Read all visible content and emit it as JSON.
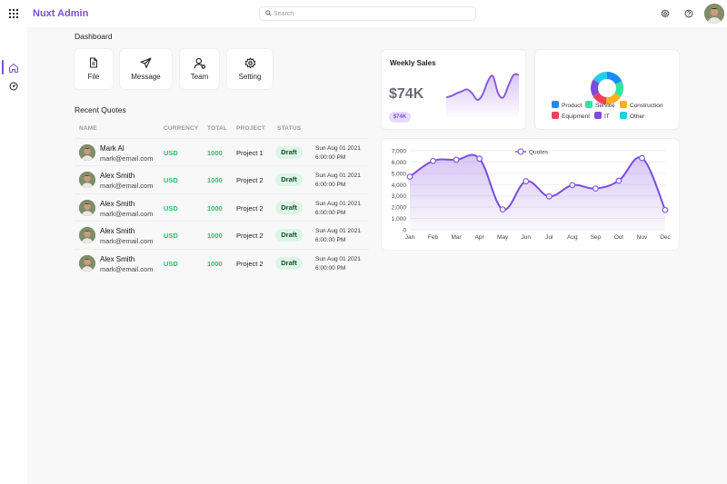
{
  "app": {
    "brand": "Nuxt Admin"
  },
  "search": {
    "placeholder": "Search"
  },
  "icons": {
    "apps": "grid-icon",
    "search": "search-icon",
    "settings": "gear-icon",
    "help": "help-icon",
    "home": "home-icon",
    "dashboard": "gauge-icon",
    "file": "file-icon",
    "message": "send-icon",
    "team": "user-icon",
    "setting": "gear-icon"
  },
  "colors": {
    "accent": "#7c4ddc",
    "status_green": "#25c26b",
    "badge_bg": "#dcf5e6"
  },
  "dashboard": {
    "title": "Dashboard",
    "tiles": [
      {
        "label": "File",
        "icon": "file-icon"
      },
      {
        "label": "Message",
        "icon": "send-icon"
      },
      {
        "label": "Team",
        "icon": "user-icon"
      },
      {
        "label": "Setting",
        "icon": "gear-icon"
      }
    ]
  },
  "quotes": {
    "title": "Recent Quotes",
    "columns": [
      "NAME",
      "CURRENCY",
      "TOTAL",
      "PROJECT",
      "STATUS"
    ],
    "rows": [
      {
        "name": "Mark Al",
        "email": "mark@email.com",
        "currency": "USD",
        "total": "1000",
        "project": "Project 1",
        "status": "Draft",
        "date": "Sun Aug 01 2021",
        "time": "6:00:00 PM"
      },
      {
        "name": "Alex Smith",
        "email": "mark@email.com",
        "currency": "USD",
        "total": "1000",
        "project": "Project 2",
        "status": "Draft",
        "date": "Sun Aug 01 2021",
        "time": "6:00:00 PM"
      },
      {
        "name": "Alex Smith",
        "email": "mark@email.com",
        "currency": "USD",
        "total": "1000",
        "project": "Project 2",
        "status": "Draft",
        "date": "Sun Aug 01 2021",
        "time": "6:00:00 PM"
      },
      {
        "name": "Alex Smith",
        "email": "mark@email.com",
        "currency": "USD",
        "total": "1000",
        "project": "Project 2",
        "status": "Draft",
        "date": "Sun Aug 01 2021",
        "time": "6:00:00 PM"
      },
      {
        "name": "Alex Smith",
        "email": "mark@email.com",
        "currency": "USD",
        "total": "1000",
        "project": "Project 2",
        "status": "Draft",
        "date": "Sun Aug 01 2021",
        "time": "6:00:00 PM"
      }
    ]
  },
  "weekly": {
    "title": "Weekly Sales",
    "value": "$74K",
    "badge": "$74K"
  },
  "chart_data": [
    {
      "type": "area",
      "title": "Weekly Sales",
      "values": [
        3,
        3.2,
        3.6,
        3.9,
        4.2,
        3.6,
        2.6,
        3.4,
        5.4,
        6.2,
        3.6,
        3.0,
        4.8,
        6.4,
        6.4
      ],
      "grid": false,
      "color": "#8b5be0"
    },
    {
      "type": "pie",
      "categories": [
        "Product",
        "Service",
        "Construction",
        "Equipment",
        "IT",
        "Other"
      ],
      "values": [
        18,
        16,
        17,
        16,
        17,
        16
      ],
      "colors": [
        "#1a8cff",
        "#2ee6a0",
        "#ffb020",
        "#f04060",
        "#7c4ddc",
        "#22d0e6"
      ],
      "legend": "bottom"
    },
    {
      "type": "line",
      "categories": [
        "Jan",
        "Feb",
        "Mar",
        "Apr",
        "May",
        "Jun",
        "Jul",
        "Aug",
        "Sep",
        "Oct",
        "Nov",
        "Dec"
      ],
      "series": [
        {
          "name": "Quotes",
          "values": [
            4700,
            6100,
            6200,
            6300,
            1800,
            4300,
            2950,
            3950,
            3650,
            4350,
            6350,
            1750
          ]
        }
      ],
      "yticks": [
        "0",
        "1,000",
        "2,000",
        "3,000",
        "4,000",
        "5,000",
        "6,000",
        "7,000"
      ],
      "ylim": [
        0,
        7000
      ],
      "grid": true,
      "legend": "top"
    }
  ]
}
